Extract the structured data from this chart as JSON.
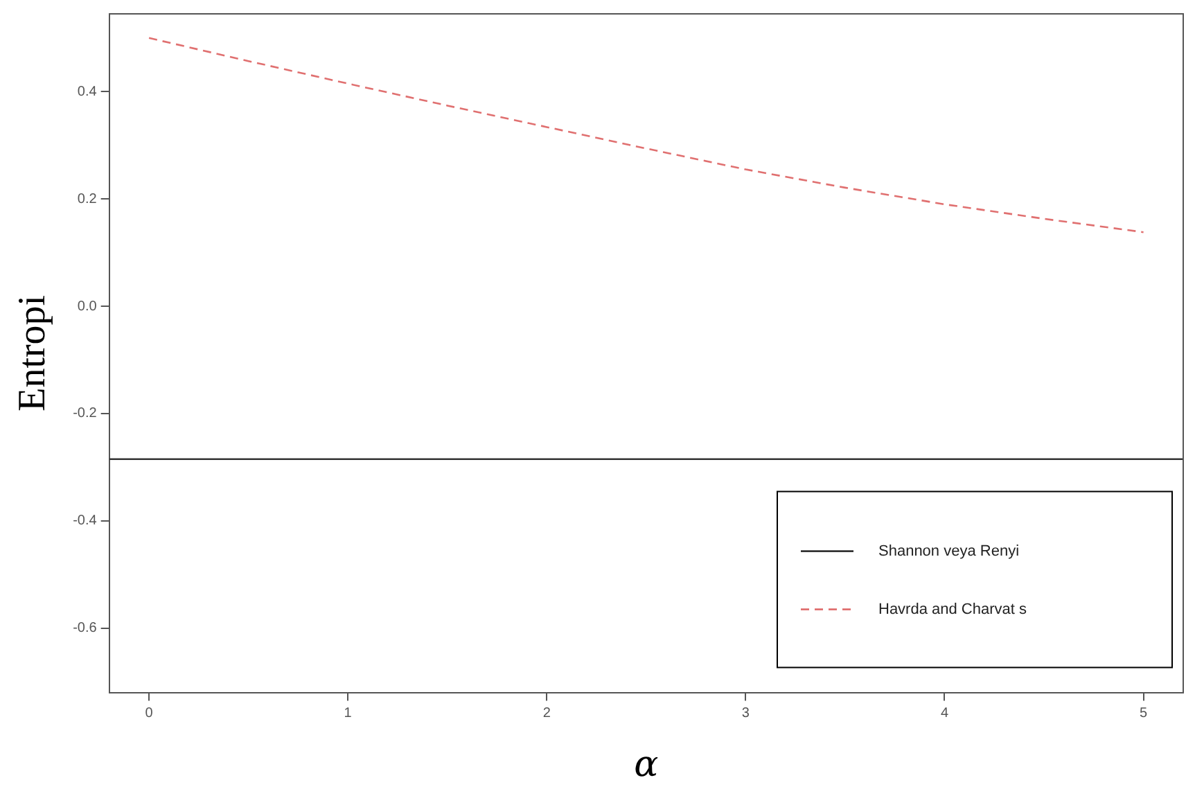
{
  "chart_data": {
    "type": "line",
    "xlabel": "α",
    "ylabel": "Entropi",
    "x": [
      0,
      0.5,
      1,
      1.5,
      2,
      2.5,
      3,
      3.5,
      4,
      4.5,
      5
    ],
    "series": [
      {
        "name": "Shannon veya Renyi",
        "color": "#333333",
        "line_style": "solid",
        "x": [
          -0.2,
          5.2
        ],
        "values": [
          -0.285,
          -0.285
        ]
      },
      {
        "name": "Havrda and Charvat s",
        "color": "#e07070",
        "line_style": "dashed",
        "values": [
          0.5,
          0.457,
          0.415,
          0.374,
          0.334,
          0.294,
          0.255,
          0.221,
          0.19,
          0.163,
          0.138
        ]
      }
    ],
    "xlim": [
      -0.2,
      5.2
    ],
    "xticks": [
      0,
      1,
      2,
      3,
      4,
      5
    ],
    "ylim": [
      -0.72,
      0.545
    ],
    "yticks": [
      -0.6,
      -0.4,
      -0.2,
      {
        "value": 0,
        "label": "0.0"
      },
      0.2,
      0.4
    ],
    "grid": false,
    "legend": "bottom right",
    "marker": "none"
  }
}
